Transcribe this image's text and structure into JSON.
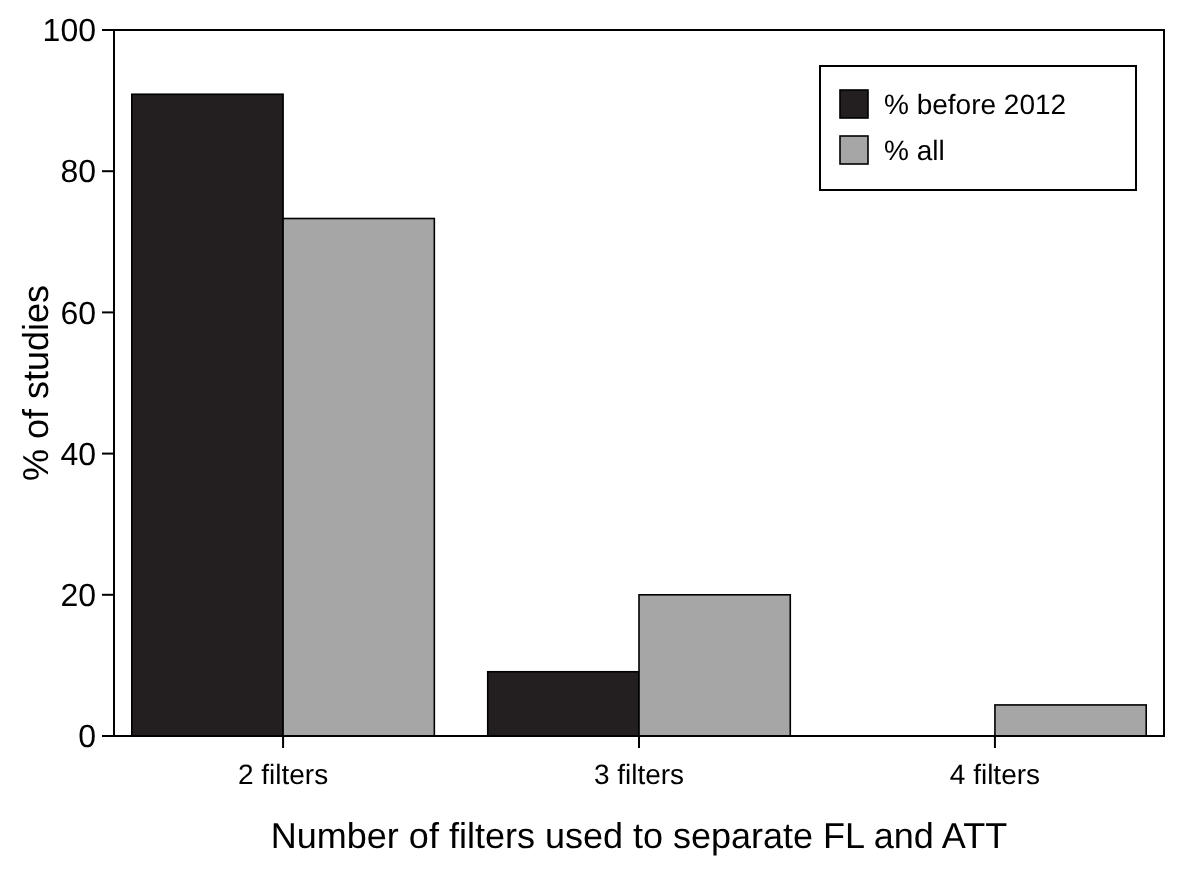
{
  "chart_data": {
    "type": "bar",
    "xlabel": "Number of filters used to separate FL and ATT",
    "ylabel": "% of studies",
    "categories": [
      "2 filters",
      "3 filters",
      "4 filters"
    ],
    "series": [
      {
        "name": "% before 2012",
        "color": "#231f20",
        "values": [
          90.9,
          9.1,
          0
        ]
      },
      {
        "name": "% all",
        "color": "#a6a6a6",
        "values": [
          73.3,
          20,
          4.4
        ]
      }
    ],
    "ylim": [
      0,
      100
    ],
    "yticks": [
      0,
      20,
      40,
      60,
      80,
      100
    ],
    "legend": "top right"
  }
}
